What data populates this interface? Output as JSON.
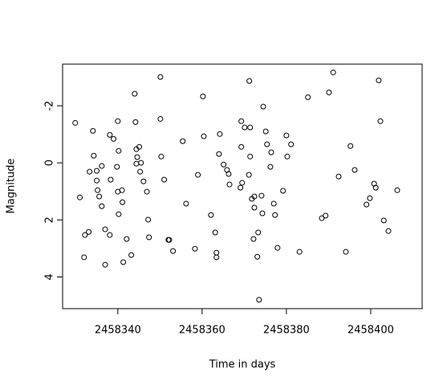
{
  "chart_data": {
    "type": "scatter",
    "x_label": "Time in days",
    "y_label": "Magnitude",
    "x": [
      2458329.9,
      2458331.0,
      2458332.0,
      2458332.2,
      2458333.1,
      2458333.3,
      2458334.1,
      2458334.3,
      2458335.0,
      2458335.0,
      2458335.2,
      2458335.6,
      2458336.2,
      2458336.2,
      2458337.0,
      2458337.0,
      2458338.1,
      2458338.1,
      2458338.3,
      2458339.0,
      2458339.8,
      2458340.0,
      2458340.0,
      2458340.2,
      2458340.2,
      2458341.0,
      2458341.1,
      2458341.3,
      2458342.1,
      2458343.2,
      2458344.0,
      2458344.2,
      2458344.4,
      2458344.4,
      2458344.6,
      2458345.1,
      2458345.3,
      2458345.5,
      2458346.1,
      2458346.9,
      2458347.2,
      2458347.4,
      2458350.1,
      2458350.1,
      2458350.3,
      2458351.0,
      2458352.0,
      2458352.2,
      2458353.1,
      2458355.4,
      2458356.2,
      2458358.3,
      2458359.0,
      2458360.2,
      2458360.4,
      2458362.1,
      2458363.1,
      2458363.4,
      2458363.4,
      2458364.0,
      2458364.2,
      2458365.1,
      2458365.9,
      2458366.3,
      2458366.5,
      2458369.1,
      2458369.3,
      2458369.3,
      2458369.5,
      2458370.1,
      2458371.1,
      2458371.2,
      2458371.4,
      2458371.4,
      2458371.8,
      2458372.2,
      2458372.4,
      2458372.4,
      2458373.1,
      2458373.3,
      2458373.5,
      2458374.1,
      2458374.3,
      2458374.5,
      2458375.1,
      2458375.4,
      2458376.2,
      2458376.4,
      2458377.0,
      2458377.3,
      2458377.9,
      2458379.2,
      2458380.0,
      2458380.2,
      2458381.1,
      2458383.1,
      2458385.1,
      2458388.4,
      2458389.3,
      2458390.1,
      2458391.1,
      2458392.4,
      2458394.1,
      2458395.2,
      2458396.2,
      2458399.0,
      2458399.8,
      2458400.8,
      2458401.2,
      2458401.9,
      2458402.3,
      2458403.1,
      2458404.2,
      2458406.3
    ],
    "values": [
      -1.4,
      1.21,
      3.31,
      2.53,
      2.42,
      0.31,
      -1.12,
      -0.25,
      0.62,
      0.28,
      0.96,
      1.18,
      0.11,
      1.52,
      3.57,
      2.33,
      -0.98,
      2.53,
      0.59,
      -0.84,
      0.14,
      -1.46,
      1.01,
      -0.42,
      1.8,
      0.96,
      1.38,
      3.48,
      2.67,
      3.23,
      -2.42,
      -1.43,
      -0.48,
      0.03,
      -0.2,
      -0.56,
      0.31,
      0.0,
      0.65,
      1.01,
      1.99,
      2.61,
      -3.01,
      -1.54,
      -0.22,
      0.59,
      2.7,
      2.7,
      3.09,
      -0.76,
      1.43,
      3.01,
      0.42,
      -2.33,
      -0.93,
      1.83,
      2.44,
      3.15,
      3.31,
      -0.31,
      -1.01,
      0.06,
      0.25,
      0.39,
      0.76,
      0.87,
      -1.46,
      -0.56,
      0.7,
      -1.24,
      0.42,
      -2.87,
      -1.24,
      -0.22,
      1.26,
      2.67,
      1.18,
      1.57,
      3.29,
      2.44,
      4.8,
      1.15,
      1.77,
      -1.97,
      -1.1,
      -0.65,
      0.14,
      -0.37,
      1.43,
      1.83,
      2.98,
      0.98,
      -0.96,
      -0.22,
      -0.65,
      3.12,
      -2.3,
      1.94,
      1.85,
      -2.47,
      -3.17,
      0.48,
      3.12,
      -0.59,
      0.25,
      1.46,
      1.24,
      0.73,
      0.87,
      -2.89,
      -1.46,
      2.02,
      2.39,
      0.96
    ],
    "xlim": [
      2458326.9,
      2458412.2
    ],
    "ylim": [
      5.11,
      -3.46
    ],
    "xticks": [
      2458340,
      2458360,
      2458380,
      2458400
    ],
    "yticks": [
      -2,
      0,
      2,
      4
    ],
    "color": "#000000"
  }
}
